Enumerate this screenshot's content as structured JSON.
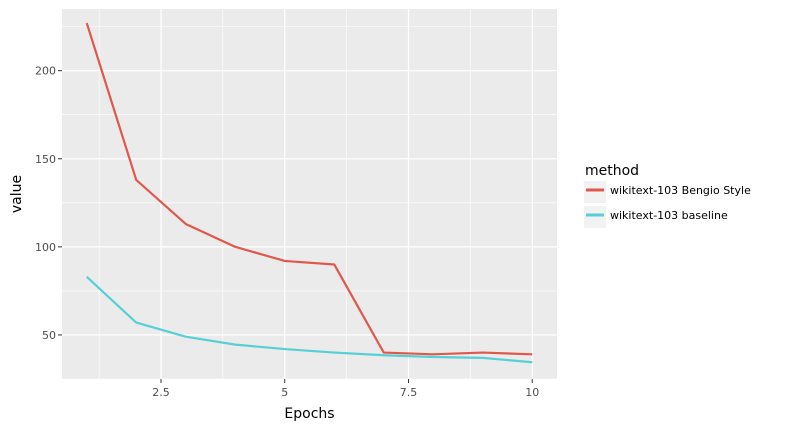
{
  "chart_data": {
    "type": "line",
    "x": [
      1,
      2,
      3,
      4,
      5,
      6,
      7,
      8,
      9,
      10
    ],
    "series": [
      {
        "name": "wikitext-103 Bengio Style",
        "color": "#e0584c",
        "values": [
          227,
          138,
          113,
          100,
          92,
          90,
          40,
          39,
          40,
          39
        ]
      },
      {
        "name": "wikitext-103 baseline",
        "color": "#56cfd6",
        "values": [
          83,
          57,
          49,
          44.5,
          42,
          40,
          38.5,
          37.5,
          37,
          34.5
        ]
      }
    ],
    "xlabel": "Epochs",
    "ylabel": "value",
    "xlim": [
      0.5,
      10.5
    ],
    "ylim": [
      25,
      235
    ],
    "x_ticks": [
      2.5,
      5,
      7.5,
      10
    ],
    "x_tick_labels": [
      "2.5",
      "5",
      "7.5",
      "10"
    ],
    "y_ticks": [
      50,
      100,
      150,
      200
    ],
    "y_tick_labels": [
      "50",
      "100",
      "150",
      "200"
    ],
    "legend": {
      "title": "method",
      "placement": "right"
    },
    "grid": true,
    "panel_background": "#ebebeb",
    "grid_color": "#ffffff"
  }
}
